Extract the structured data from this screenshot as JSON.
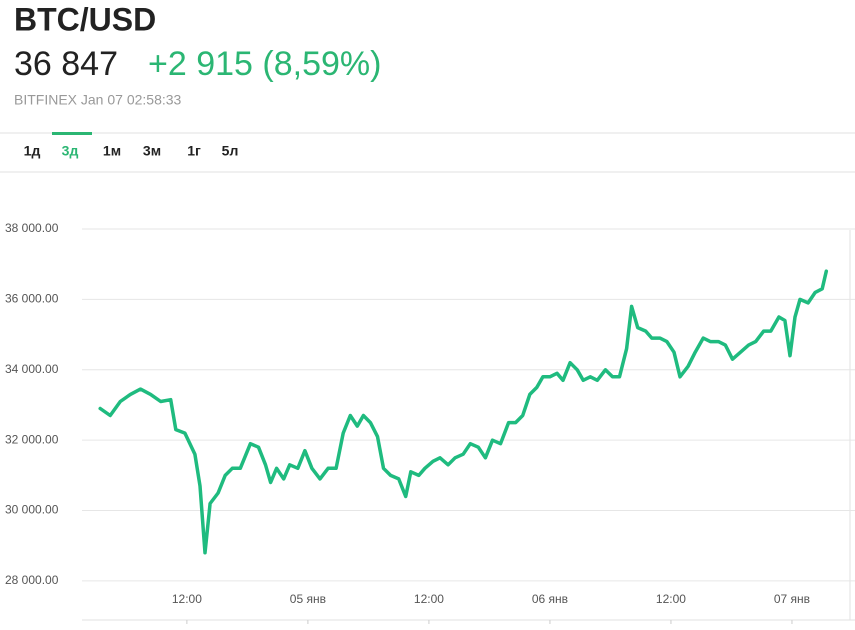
{
  "header": {
    "symbol": "BTC/USD",
    "price": "36 847",
    "change": "+2 915 (8,59%)",
    "source": "BITFINEX Jan 07 02:58:33"
  },
  "tabs": [
    "1д",
    "3д",
    "1м",
    "3м",
    "1г",
    "5л"
  ],
  "active_tab": 1,
  "chart_data": {
    "type": "line",
    "color": "#1fbb7f",
    "grid": true,
    "xlim": [
      1.6,
      78.25
    ],
    "ylim": [
      26890,
      39620
    ],
    "xticks": [
      {
        "value": 12,
        "label": "12:00"
      },
      {
        "value": 24,
        "label": "05 янв"
      },
      {
        "value": 36,
        "label": "12:00"
      },
      {
        "value": 48,
        "label": "06 янв"
      },
      {
        "value": 60,
        "label": "12:00"
      },
      {
        "value": 72,
        "label": "07 янв"
      }
    ],
    "yticks": [
      {
        "value": 28000,
        "label": "28 000.00"
      },
      {
        "value": 30000,
        "label": "30 000.00"
      },
      {
        "value": 32000,
        "label": "32 000.00"
      },
      {
        "value": 34000,
        "label": "34 000.00"
      },
      {
        "value": 36000,
        "label": "36 000.00"
      },
      {
        "value": 38000,
        "label": "38 000.00"
      }
    ],
    "x": [
      3.4,
      4.4,
      5.4,
      6.4,
      7.4,
      8.4,
      9.4,
      10.4,
      10.9,
      11.8,
      12.8,
      13.3,
      13.8,
      14.3,
      15.1,
      15.8,
      16.5,
      17.3,
      18.3,
      19.1,
      19.8,
      20.3,
      20.9,
      21.6,
      22.2,
      23.0,
      23.7,
      24.4,
      25.2,
      26.0,
      26.8,
      27.5,
      28.2,
      28.9,
      29.5,
      30.2,
      30.9,
      31.5,
      32.2,
      33.0,
      33.7,
      34.2,
      35.0,
      35.6,
      36.4,
      37.1,
      37.9,
      38.6,
      39.4,
      40.1,
      40.9,
      41.6,
      42.3,
      43.1,
      43.9,
      44.6,
      45.3,
      46.0,
      46.7,
      47.3,
      48.0,
      48.7,
      49.3,
      50.0,
      50.7,
      51.3,
      52.0,
      52.7,
      53.5,
      54.2,
      54.9,
      55.6,
      56.1,
      56.7,
      57.5,
      58.1,
      58.9,
      59.6,
      60.3,
      60.9,
      61.7,
      62.4,
      63.2,
      63.9,
      64.7,
      65.4,
      66.1,
      66.9,
      67.7,
      68.4,
      69.2,
      69.9,
      70.7,
      71.3,
      71.8,
      72.3,
      72.8,
      73.6,
      74.3,
      75.0,
      75.4
    ],
    "values": [
      32900,
      32700,
      33100,
      33300,
      33450,
      33300,
      33100,
      33150,
      32300,
      32200,
      31600,
      30700,
      28800,
      30200,
      30500,
      31000,
      31200,
      31200,
      31900,
      31800,
      31300,
      30800,
      31200,
      30900,
      31300,
      31200,
      31700,
      31200,
      30900,
      31200,
      31200,
      32200,
      32700,
      32400,
      32700,
      32500,
      32100,
      31200,
      31000,
      30900,
      30400,
      31100,
      31000,
      31200,
      31400,
      31500,
      31300,
      31500,
      31600,
      31900,
      31800,
      31500,
      32000,
      31900,
      32500,
      32500,
      32700,
      33300,
      33500,
      33800,
      33800,
      33900,
      33700,
      34200,
      34000,
      33700,
      33800,
      33700,
      34000,
      33800,
      33800,
      34600,
      35800,
      35200,
      35100,
      34900,
      34900,
      34800,
      34500,
      33800,
      34100,
      34500,
      34900,
      34800,
      34800,
      34700,
      34300,
      34500,
      34700,
      34800,
      35100,
      35100,
      35500,
      35400,
      34400,
      35500,
      36000,
      35900,
      36200,
      36300,
      36800
    ]
  }
}
